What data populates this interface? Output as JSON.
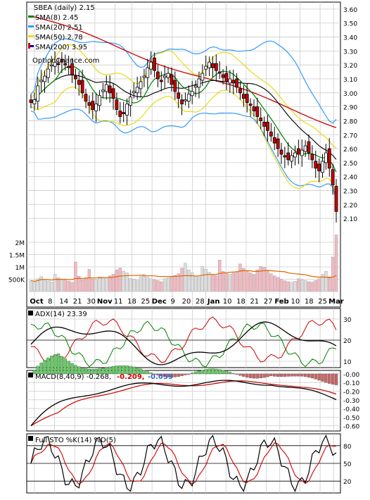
{
  "chart_data": [
    {
      "type": "candlestick",
      "panel": "price",
      "legend": [
        {
          "label": "SBEA (daily) 2.15",
          "color": "#000000",
          "symbol": "none"
        },
        {
          "label": "SMA(8) 2.45",
          "color": "#008000",
          "symbol": "bar"
        },
        {
          "label": "SMA(20) 2.51",
          "color": "#3399ff",
          "symbol": "bar"
        },
        {
          "label": "SMA(50) 2.78",
          "color": "#ffd700",
          "symbol": "bar"
        },
        {
          "label": "SMA(200) 3.95",
          "color": "#cc0000",
          "symbol": "mix"
        }
      ],
      "watermark": "OptionChance.com",
      "y_ticks": [
        "3.60",
        "3.50",
        "3.40",
        "3.30",
        "3.20",
        "3.10",
        "3.00",
        "2.90",
        "2.80",
        "2.70",
        "2.60",
        "2.50",
        "2.40",
        "2.30",
        "2.20",
        "2.10"
      ],
      "ylim": [
        2.0,
        3.65
      ],
      "x_labels": [
        "Oct",
        "8",
        "14",
        "21",
        "30",
        "Nov",
        "11",
        "18",
        "25",
        "Dec",
        "9",
        "20",
        "28",
        "Jan",
        "10",
        "18",
        "21",
        "27",
        "Feb",
        "10",
        "18",
        "25",
        "Mar"
      ],
      "bold_x_labels": [
        "Oct",
        "Nov",
        "Dec",
        "Jan",
        "Feb",
        "Mar"
      ],
      "closes": [
        2.93,
        2.95,
        3.05,
        3.09,
        3.12,
        3.17,
        3.2,
        3.22,
        3.21,
        3.22,
        3.2,
        3.18,
        3.13,
        3.1,
        3.06,
        3.0,
        2.94,
        2.91,
        2.88,
        2.92,
        2.98,
        3.02,
        3.06,
        3.0,
        2.96,
        2.88,
        2.83,
        2.85,
        2.92,
        2.97,
        3.01,
        3.04,
        3.08,
        3.12,
        3.18,
        3.22,
        3.16,
        3.1,
        3.08,
        3.12,
        3.14,
        3.06,
        3.01,
        2.96,
        2.92,
        2.95,
        2.99,
        3.01,
        3.05,
        3.1,
        3.14,
        3.19,
        3.22,
        3.18,
        3.16,
        3.14,
        3.11,
        3.08,
        3.1,
        3.07,
        3.04,
        3.0,
        2.96,
        2.93,
        2.91,
        2.87,
        2.83,
        2.8,
        2.76,
        2.73,
        2.69,
        2.64,
        2.6,
        2.56,
        2.54,
        2.52,
        2.55,
        2.57,
        2.56,
        2.59,
        2.62,
        2.57,
        2.52,
        2.46,
        2.44,
        2.51,
        2.57,
        2.46,
        2.34,
        2.15
      ],
      "sma8_end": 2.45,
      "sma20_end": 2.51,
      "sma50_end": 2.78,
      "sma200_end": 3.95
    },
    {
      "type": "bar",
      "panel": "volume",
      "y_ticks": [
        "2M",
        "1.5M",
        "1M",
        "500K"
      ],
      "ylim": [
        0,
        2400000
      ],
      "values": [
        450000,
        380000,
        520000,
        610000,
        480000,
        420000,
        390000,
        700000,
        550000,
        460000,
        500000,
        430000,
        380000,
        1200000,
        620000,
        480000,
        560000,
        900000,
        510000,
        470000,
        600000,
        580000,
        520000,
        640000,
        700000,
        880000,
        960000,
        820000,
        760000,
        540000,
        500000,
        460000,
        610000,
        700000,
        580000,
        520000,
        480000,
        450000,
        400000,
        520000,
        560000,
        610000,
        660000,
        720000,
        950000,
        1150000,
        880000,
        760000,
        620000,
        600000,
        1020000,
        910000,
        780000,
        700000,
        650000,
        1280000,
        820000,
        740000,
        700000,
        760000,
        800000,
        1120000,
        940000,
        820000,
        760000,
        700000,
        880000,
        1020000,
        980000,
        840000,
        720000,
        640000,
        580000,
        500000,
        440000,
        400000,
        380000,
        420000,
        520000,
        480000,
        450000,
        400000,
        380000,
        450000,
        520000,
        700000,
        820000,
        600000,
        1400000,
        2300000
      ]
    },
    {
      "type": "line",
      "panel": "adx",
      "title": "ADX(14) 23.39",
      "y_ticks": [
        "30",
        "20",
        "10"
      ],
      "ylim": [
        7,
        35
      ]
    },
    {
      "type": "line",
      "panel": "macd",
      "title": "MACD(8,40,9) -0.268,",
      "values_labels": [
        {
          "text": "-0.209,",
          "color": "#cc0000"
        },
        {
          "text": "-0.059",
          "color": "#3366cc"
        }
      ],
      "y_ticks": [
        "-0.00",
        "-0.10",
        "-0.20",
        "-0.30",
        "-0.40",
        "-0.50",
        "-0.60"
      ],
      "ylim": [
        -0.66,
        0.04
      ]
    },
    {
      "type": "line",
      "panel": "stochastic",
      "title": "Full STO %K(14) %D(5)",
      "y_ticks": [
        "80",
        "50",
        "20"
      ],
      "ylim": [
        0,
        100
      ]
    }
  ]
}
